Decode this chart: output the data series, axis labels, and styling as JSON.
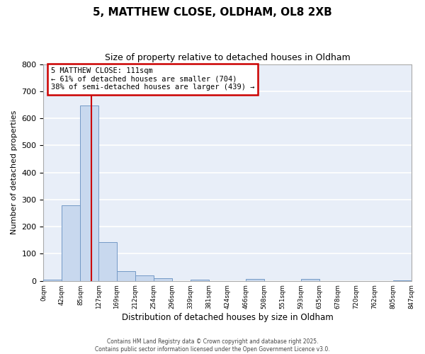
{
  "title": "5, MATTHEW CLOSE, OLDHAM, OL8 2XB",
  "subtitle": "Size of property relative to detached houses in Oldham",
  "xlabel": "Distribution of detached houses by size in Oldham",
  "ylabel": "Number of detached properties",
  "bin_edges": [
    0,
    42,
    85,
    127,
    169,
    212,
    254,
    296,
    339,
    381,
    424,
    466,
    508,
    551,
    593,
    635,
    678,
    720,
    762,
    805,
    847
  ],
  "bin_counts": [
    5,
    278,
    648,
    142,
    37,
    20,
    10,
    0,
    5,
    0,
    0,
    7,
    0,
    0,
    7,
    0,
    0,
    0,
    0,
    3
  ],
  "bar_color": "#c8d8ee",
  "bar_edge_color": "#7399c6",
  "property_line_x": 111,
  "property_line_color": "#cc0000",
  "annotation_text": "5 MATTHEW CLOSE: 111sqm\n← 61% of detached houses are smaller (704)\n38% of semi-detached houses are larger (439) →",
  "annotation_box_color": "#ffffff",
  "annotation_box_edge_color": "#cc0000",
  "ylim": [
    0,
    800
  ],
  "yticks": [
    0,
    100,
    200,
    300,
    400,
    500,
    600,
    700,
    800
  ],
  "bg_color": "#ffffff",
  "plot_bg_color": "#e8eef8",
  "grid_color": "#ffffff",
  "footer_line1": "Contains HM Land Registry data © Crown copyright and database right 2025.",
  "footer_line2": "Contains public sector information licensed under the Open Government Licence v3.0."
}
